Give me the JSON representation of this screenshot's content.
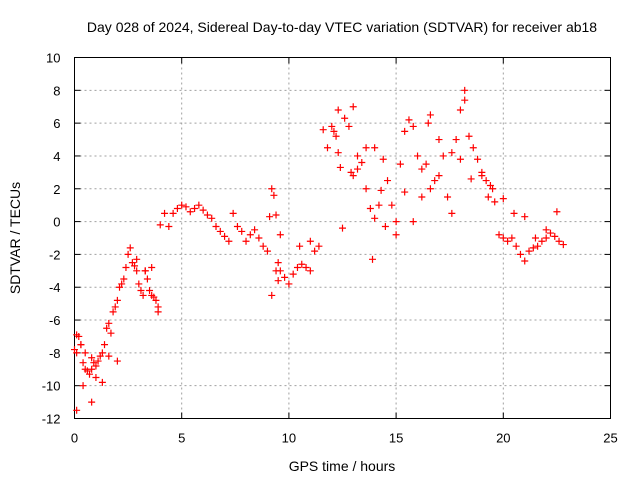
{
  "chart_data": {
    "type": "scatter",
    "title": "Day 028 of 2024, Sidereal Day-to-day VTEC variation (SDTVAR) for receiver ab18",
    "xlabel": "GPS time / hours",
    "ylabel": "SDTVAR / TECUs",
    "xlim": [
      0,
      25
    ],
    "ylim": [
      -12,
      10
    ],
    "xticks": [
      "0",
      "5",
      "10",
      "15",
      "20",
      "25"
    ],
    "yticks": [
      "10",
      "8",
      "6",
      "4",
      "2",
      "0",
      "-2",
      "-4",
      "-6",
      "-8",
      "-10",
      "-12"
    ],
    "grid": true,
    "marker": "+",
    "color": "#ff0000",
    "series": [
      {
        "name": "SDTVAR",
        "x": [
          0.0,
          0.1,
          0.2,
          0.3,
          0.4,
          0.5,
          0.6,
          0.7,
          0.8,
          0.9,
          1.0,
          1.1,
          1.2,
          1.3,
          1.4,
          1.5,
          1.6,
          1.7,
          1.8,
          1.9,
          2.0,
          2.1,
          2.2,
          2.3,
          2.4,
          2.5,
          2.6,
          2.7,
          2.8,
          2.9,
          3.0,
          3.1,
          3.2,
          3.3,
          3.4,
          3.5,
          3.6,
          3.7,
          3.8,
          3.9,
          4.0,
          4.2,
          4.4,
          4.6,
          4.8,
          5.0,
          5.2,
          5.4,
          5.6,
          5.8,
          6.0,
          6.2,
          6.4,
          6.6,
          6.8,
          7.0,
          7.2,
          7.4,
          7.6,
          7.8,
          8.0,
          8.2,
          8.4,
          8.6,
          8.8,
          9.0,
          9.1,
          9.2,
          9.3,
          9.4,
          9.5,
          9.6,
          9.8,
          10.0,
          10.2,
          10.4,
          10.6,
          10.8,
          11.0,
          11.2,
          11.4,
          11.6,
          11.8,
          12.0,
          12.1,
          12.2,
          12.3,
          12.4,
          12.6,
          12.8,
          13.0,
          13.2,
          13.4,
          13.6,
          13.8,
          14.0,
          14.2,
          14.4,
          14.6,
          14.8,
          15.0,
          15.2,
          15.4,
          15.6,
          15.8,
          16.0,
          16.2,
          16.4,
          16.6,
          16.8,
          17.0,
          17.2,
          17.4,
          17.6,
          17.8,
          18.0,
          18.2,
          18.4,
          18.6,
          18.8,
          19.0,
          19.2,
          19.4,
          19.6,
          19.8,
          20.0,
          20.2,
          20.4,
          20.6,
          20.8,
          21.0,
          21.2,
          21.4,
          21.6,
          21.8,
          22.0,
          22.2,
          22.4,
          22.6,
          22.8,
          0.1,
          0.3,
          0.5,
          0.8,
          1.0,
          1.6,
          2.9,
          3.3,
          3.6,
          3.9,
          9.2,
          9.4,
          9.5,
          9.6,
          10.5,
          11.0,
          12.5,
          12.9,
          13.2,
          13.6,
          13.9,
          14.3,
          14.5,
          15.0,
          15.4,
          15.8,
          16.2,
          16.6,
          17.0,
          17.6,
          18.0,
          18.5,
          19.0,
          19.5,
          20.0,
          20.5,
          21.0,
          21.5,
          22.0,
          22.5,
          0.1,
          0.4,
          0.8,
          1.3,
          2.0,
          12.3,
          13.0,
          14.0,
          16.5,
          18.2,
          19.3
        ],
        "values": [
          -7.8,
          -8.0,
          -7.0,
          -7.5,
          -8.6,
          -9.0,
          -9.1,
          -9.3,
          -9.0,
          -8.6,
          -8.8,
          -8.5,
          -8.2,
          -8.0,
          -7.5,
          -6.5,
          -6.2,
          -6.8,
          -5.5,
          -5.2,
          -4.8,
          -4.0,
          -3.8,
          -3.5,
          -2.8,
          -2.0,
          -1.6,
          -2.5,
          -2.7,
          -3.0,
          -3.8,
          -4.2,
          -4.5,
          -3.0,
          -3.5,
          -4.2,
          -2.8,
          -4.6,
          -4.8,
          -5.2,
          -0.2,
          0.5,
          -0.3,
          0.5,
          0.8,
          1.0,
          0.9,
          0.6,
          0.8,
          1.0,
          0.7,
          0.4,
          0.2,
          -0.3,
          -0.6,
          -0.9,
          -1.2,
          0.5,
          -0.3,
          -0.6,
          -1.2,
          -0.8,
          -0.5,
          -1.0,
          -1.5,
          -1.8,
          0.3,
          2.0,
          1.6,
          0.4,
          -2.5,
          -3.0,
          -3.4,
          -3.8,
          -3.2,
          -2.8,
          -2.6,
          -2.8,
          -3.0,
          -1.8,
          -1.5,
          5.6,
          4.5,
          5.8,
          5.5,
          5.2,
          4.2,
          3.3,
          6.3,
          5.8,
          2.8,
          4.0,
          3.6,
          2.0,
          0.8,
          0.2,
          1.0,
          3.8,
          2.5,
          1.0,
          0.0,
          3.5,
          5.5,
          6.2,
          5.8,
          4.0,
          3.2,
          3.5,
          6.5,
          2.5,
          5.0,
          4.0,
          1.5,
          0.5,
          5.0,
          6.8,
          7.4,
          5.2,
          4.5,
          3.8,
          3.0,
          2.5,
          2.2,
          1.2,
          -0.8,
          -1.0,
          -1.2,
          -1.0,
          -1.5,
          -2.0,
          -2.4,
          -1.8,
          -1.6,
          -1.5,
          -1.2,
          -1.0,
          -0.7,
          -0.9,
          -1.2,
          -1.4,
          -6.9,
          -7.5,
          -8.0,
          -8.3,
          -9.5,
          -8.2,
          -2.3,
          -3.0,
          -4.5,
          -5.5,
          -4.5,
          -3.0,
          -3.6,
          -0.8,
          -1.5,
          -1.2,
          -0.4,
          3.0,
          3.2,
          4.5,
          -2.3,
          1.9,
          -0.3,
          -0.8,
          1.8,
          0.0,
          1.5,
          2.0,
          2.8,
          4.2,
          3.8,
          2.6,
          2.8,
          2.0,
          1.4,
          0.5,
          0.3,
          -1.0,
          -0.5,
          0.6,
          -11.5,
          -10.0,
          -11.0,
          -9.8,
          -8.5,
          6.8,
          7.0,
          4.5,
          6.0,
          8.0,
          1.5
        ]
      }
    ]
  }
}
